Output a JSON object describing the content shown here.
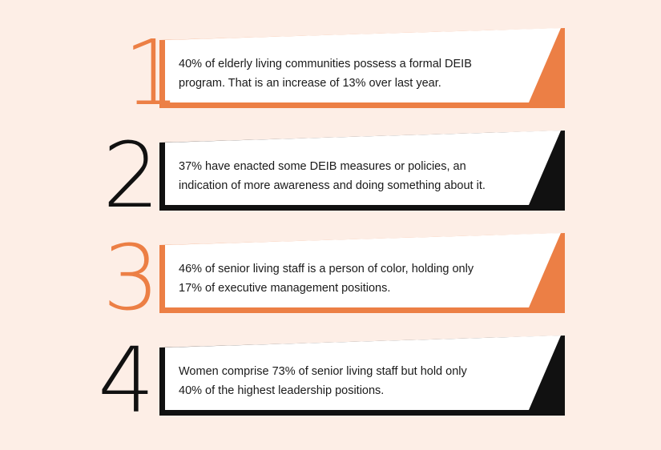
{
  "colors": {
    "background": "#fdeee6",
    "orange": "#ec7f45",
    "black": "#111111",
    "card": "#ffffff"
  },
  "items": [
    {
      "number": "1",
      "color": "#ec7f45",
      "line1": "40% of elderly living communities possess a formal DEIB",
      "line2": "program. That is an increase of 13% over last year."
    },
    {
      "number": "2",
      "color": "#111111",
      "line1": "37% have enacted some DEIB measures or policies, an",
      "line2": "indication of more awareness and doing something about it."
    },
    {
      "number": "3",
      "color": "#ec7f45",
      "line1": "46% of senior living staff is a person of color, holding only",
      "line2": "17% of executive management positions."
    },
    {
      "number": "4",
      "color": "#111111",
      "line1": "Women comprise 73% of senior living staff but hold only",
      "line2": "40% of the highest leadership positions."
    }
  ]
}
